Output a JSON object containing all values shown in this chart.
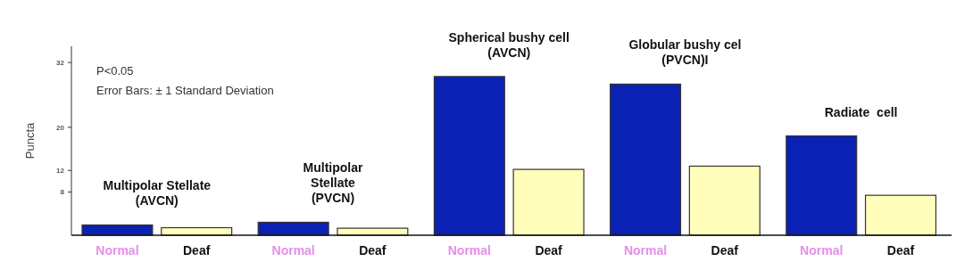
{
  "chart_data": {
    "type": "bar",
    "ylabel": "Puncta",
    "categories": [
      "Normal",
      "Deaf",
      "Normal",
      "Deaf",
      "Normal",
      "Deaf",
      "Normal",
      "Deaf",
      "Normal",
      "Deaf"
    ],
    "values": [
      1.9,
      1.4,
      2.4,
      1.3,
      29.4,
      12.2,
      28,
      12.8,
      18.4,
      7.4
    ],
    "colors": [
      "#0a22b4",
      "#ffffbb",
      "#0a22b4",
      "#ffffbb",
      "#0a22b4",
      "#ffffbb",
      "#0a22b4",
      "#ffffbb",
      "#0a22b4",
      "#ffffbb"
    ],
    "ylim": [
      0,
      35
    ],
    "yticks": [
      8,
      12,
      20,
      32
    ],
    "annotations": [
      "P<0.05",
      "Error Bars: ± 1 Standard Deviation",
      "Multipolar Stellate\n(AVCN)",
      "Multipolar\nStellate\n(PVCN)",
      "Spherical bushy cell\n(AVCN)",
      "Globular bushy cel\n(PVCN)I",
      "Radiate  cell"
    ]
  }
}
